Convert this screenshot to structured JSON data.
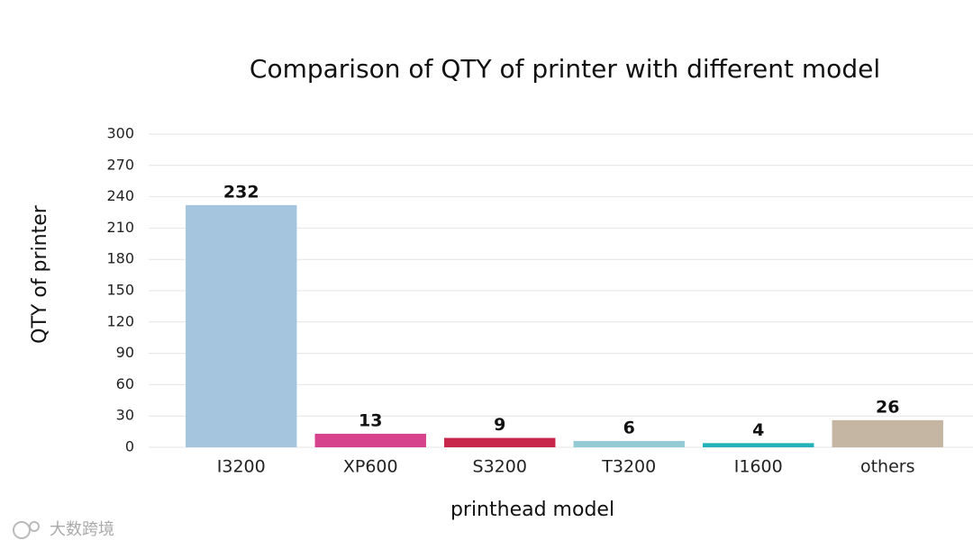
{
  "chart_data": {
    "type": "bar",
    "title": "Comparison of QTY of printer with different model",
    "x_label": "printhead model",
    "y_label": "QTY of printer",
    "categories": [
      "I3200",
      "XP600",
      "S3200",
      "T3200",
      "I1600",
      "others"
    ],
    "values": [
      232,
      13,
      9,
      6,
      4,
      26
    ],
    "colors": [
      "#a5c5df",
      "#d6428b",
      "#c8264b",
      "#93cad4",
      "#22b2b7",
      "#c5b6a3"
    ],
    "ylim": [
      0,
      300
    ],
    "yticks": [
      0,
      30,
      60,
      90,
      120,
      150,
      180,
      210,
      240,
      270,
      300
    ],
    "grid": true
  },
  "watermark": "大数跨境"
}
